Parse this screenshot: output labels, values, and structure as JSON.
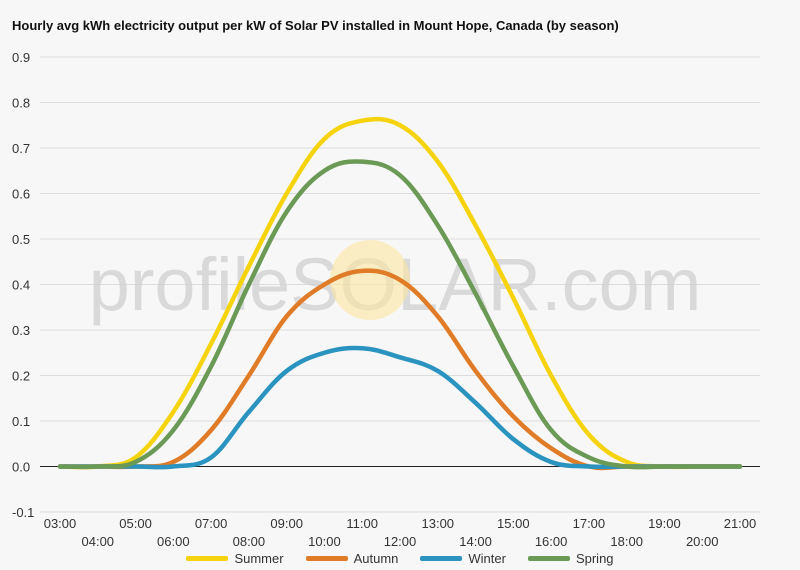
{
  "chart_data": {
    "type": "line",
    "title": "Hourly avg kWh electricity output per kW of Solar PV installed in Mount Hope, Canada (by season)",
    "xlabel": "",
    "ylabel": "",
    "x": [
      "03:00",
      "04:00",
      "05:00",
      "06:00",
      "07:00",
      "08:00",
      "09:00",
      "10:00",
      "11:00",
      "12:00",
      "13:00",
      "14:00",
      "15:00",
      "16:00",
      "17:00",
      "18:00",
      "19:00",
      "20:00",
      "21:00"
    ],
    "ylim": [
      -0.1,
      0.9
    ],
    "yticks": [
      "-0.1",
      "0.0",
      "0.1",
      "0.2",
      "0.3",
      "0.4",
      "0.5",
      "0.6",
      "0.7",
      "0.8",
      "0.9"
    ],
    "grid": true,
    "legend_position": "bottom",
    "watermark": "profileSOLAR.com",
    "series": [
      {
        "name": "Summer",
        "color": "#f5d40f",
        "values": [
          0,
          0,
          0.02,
          0.12,
          0.27,
          0.44,
          0.6,
          0.72,
          0.76,
          0.75,
          0.67,
          0.53,
          0.37,
          0.2,
          0.07,
          0.01,
          0,
          0,
          0
        ]
      },
      {
        "name": "Autumn",
        "color": "#e07b27",
        "values": [
          0,
          0,
          0,
          0.01,
          0.08,
          0.2,
          0.33,
          0.4,
          0.43,
          0.41,
          0.33,
          0.21,
          0.11,
          0.04,
          0,
          0,
          0,
          0,
          0
        ]
      },
      {
        "name": "Winter",
        "color": "#2a93bf",
        "values": [
          0,
          0,
          0,
          0,
          0.02,
          0.12,
          0.21,
          0.25,
          0.26,
          0.24,
          0.21,
          0.14,
          0.06,
          0.01,
          0,
          0,
          0,
          0,
          0
        ]
      },
      {
        "name": "Spring",
        "color": "#6b9a56",
        "values": [
          0,
          0,
          0.01,
          0.08,
          0.22,
          0.4,
          0.56,
          0.65,
          0.67,
          0.64,
          0.53,
          0.38,
          0.22,
          0.08,
          0.02,
          0,
          0,
          0,
          0
        ]
      }
    ]
  }
}
